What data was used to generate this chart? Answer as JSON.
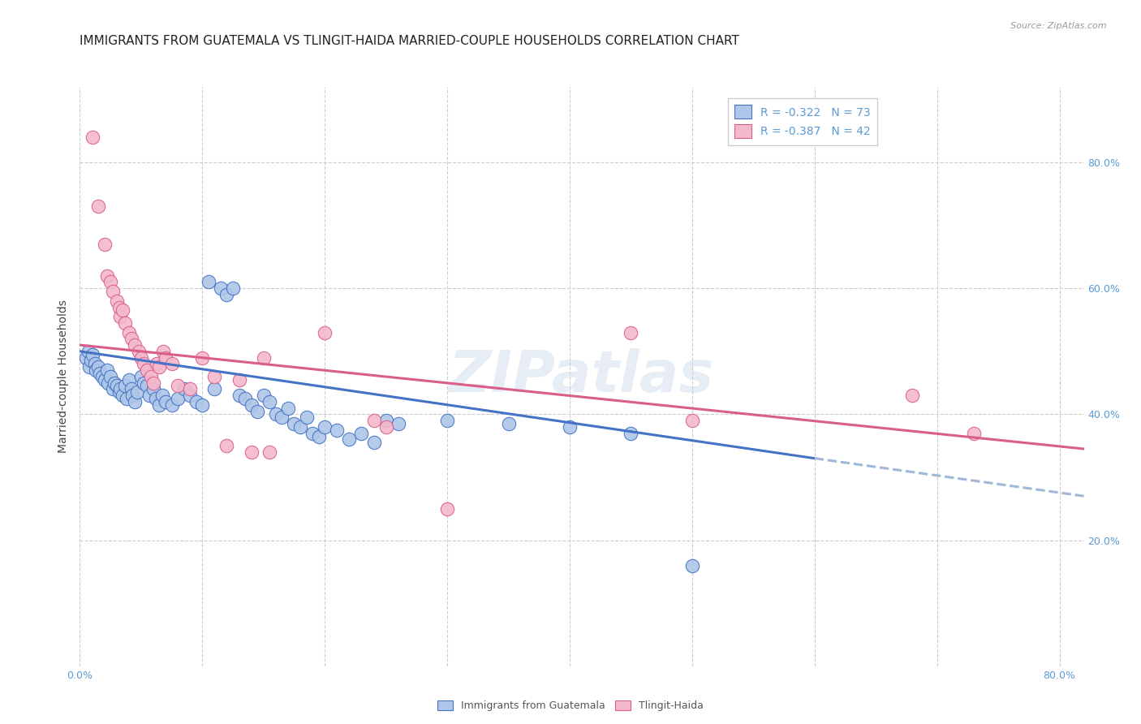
{
  "title": "IMMIGRANTS FROM GUATEMALA VS TLINGIT-HAIDA MARRIED-COUPLE HOUSEHOLDS CORRELATION CHART",
  "source": "Source: ZipAtlas.com",
  "ylabel": "Married-couple Households",
  "legend_label1": "Immigrants from Guatemala",
  "legend_label2": "Tlingit-Haida",
  "legend_R1": "R = -0.322",
  "legend_N1": "N = 73",
  "legend_R2": "R = -0.387",
  "legend_N2": "N = 42",
  "watermark": "ZIPatlas",
  "xlim": [
    0.0,
    0.82
  ],
  "ylim": [
    0.0,
    0.92
  ],
  "yticks": [
    0.2,
    0.4,
    0.6,
    0.8
  ],
  "ytick_labels": [
    "20.0%",
    "40.0%",
    "60.0%",
    "80.0%"
  ],
  "xticks": [
    0.0,
    0.1,
    0.2,
    0.3,
    0.4,
    0.5,
    0.6,
    0.7,
    0.8
  ],
  "xtick_labels": [
    "0.0%",
    "",
    "",
    "",
    "",
    "",
    "",
    "",
    "80.0%"
  ],
  "color_blue": "#aec6e8",
  "color_pink": "#f4b8cb",
  "line_color_blue": "#4472c4",
  "line_color_pink": "#d95f8a",
  "line_color_blue_dashed": "#a0b8d8",
  "tick_color": "#5b9bd5",
  "grid_color": "#cccccc",
  "scatter_blue": [
    [
      0.005,
      0.49
    ],
    [
      0.007,
      0.5
    ],
    [
      0.008,
      0.475
    ],
    [
      0.009,
      0.485
    ],
    [
      0.01,
      0.495
    ],
    [
      0.012,
      0.48
    ],
    [
      0.013,
      0.47
    ],
    [
      0.015,
      0.475
    ],
    [
      0.016,
      0.465
    ],
    [
      0.018,
      0.46
    ],
    [
      0.02,
      0.455
    ],
    [
      0.022,
      0.47
    ],
    [
      0.023,
      0.45
    ],
    [
      0.025,
      0.46
    ],
    [
      0.027,
      0.44
    ],
    [
      0.028,
      0.45
    ],
    [
      0.03,
      0.445
    ],
    [
      0.032,
      0.435
    ],
    [
      0.033,
      0.44
    ],
    [
      0.035,
      0.43
    ],
    [
      0.037,
      0.445
    ],
    [
      0.038,
      0.425
    ],
    [
      0.04,
      0.455
    ],
    [
      0.042,
      0.44
    ],
    [
      0.043,
      0.43
    ],
    [
      0.045,
      0.42
    ],
    [
      0.047,
      0.435
    ],
    [
      0.05,
      0.46
    ],
    [
      0.052,
      0.45
    ],
    [
      0.055,
      0.445
    ],
    [
      0.057,
      0.43
    ],
    [
      0.06,
      0.44
    ],
    [
      0.062,
      0.425
    ],
    [
      0.065,
      0.415
    ],
    [
      0.067,
      0.43
    ],
    [
      0.07,
      0.42
    ],
    [
      0.075,
      0.415
    ],
    [
      0.08,
      0.425
    ],
    [
      0.085,
      0.44
    ],
    [
      0.09,
      0.43
    ],
    [
      0.095,
      0.42
    ],
    [
      0.1,
      0.415
    ],
    [
      0.105,
      0.61
    ],
    [
      0.11,
      0.44
    ],
    [
      0.115,
      0.6
    ],
    [
      0.12,
      0.59
    ],
    [
      0.125,
      0.6
    ],
    [
      0.13,
      0.43
    ],
    [
      0.135,
      0.425
    ],
    [
      0.14,
      0.415
    ],
    [
      0.145,
      0.405
    ],
    [
      0.15,
      0.43
    ],
    [
      0.155,
      0.42
    ],
    [
      0.16,
      0.4
    ],
    [
      0.165,
      0.395
    ],
    [
      0.17,
      0.41
    ],
    [
      0.175,
      0.385
    ],
    [
      0.18,
      0.38
    ],
    [
      0.185,
      0.395
    ],
    [
      0.19,
      0.37
    ],
    [
      0.195,
      0.365
    ],
    [
      0.2,
      0.38
    ],
    [
      0.21,
      0.375
    ],
    [
      0.22,
      0.36
    ],
    [
      0.23,
      0.37
    ],
    [
      0.24,
      0.355
    ],
    [
      0.25,
      0.39
    ],
    [
      0.26,
      0.385
    ],
    [
      0.3,
      0.39
    ],
    [
      0.35,
      0.385
    ],
    [
      0.4,
      0.38
    ],
    [
      0.45,
      0.37
    ],
    [
      0.5,
      0.16
    ]
  ],
  "scatter_pink": [
    [
      0.01,
      0.84
    ],
    [
      0.015,
      0.73
    ],
    [
      0.02,
      0.67
    ],
    [
      0.022,
      0.62
    ],
    [
      0.025,
      0.61
    ],
    [
      0.027,
      0.595
    ],
    [
      0.03,
      0.58
    ],
    [
      0.032,
      0.57
    ],
    [
      0.033,
      0.555
    ],
    [
      0.035,
      0.565
    ],
    [
      0.037,
      0.545
    ],
    [
      0.04,
      0.53
    ],
    [
      0.042,
      0.52
    ],
    [
      0.045,
      0.51
    ],
    [
      0.048,
      0.5
    ],
    [
      0.05,
      0.49
    ],
    [
      0.052,
      0.48
    ],
    [
      0.055,
      0.47
    ],
    [
      0.058,
      0.46
    ],
    [
      0.06,
      0.45
    ],
    [
      0.063,
      0.48
    ],
    [
      0.065,
      0.475
    ],
    [
      0.068,
      0.5
    ],
    [
      0.07,
      0.49
    ],
    [
      0.075,
      0.48
    ],
    [
      0.08,
      0.445
    ],
    [
      0.09,
      0.44
    ],
    [
      0.1,
      0.49
    ],
    [
      0.11,
      0.46
    ],
    [
      0.12,
      0.35
    ],
    [
      0.13,
      0.455
    ],
    [
      0.14,
      0.34
    ],
    [
      0.15,
      0.49
    ],
    [
      0.155,
      0.34
    ],
    [
      0.2,
      0.53
    ],
    [
      0.24,
      0.39
    ],
    [
      0.25,
      0.38
    ],
    [
      0.3,
      0.25
    ],
    [
      0.45,
      0.53
    ],
    [
      0.5,
      0.39
    ],
    [
      0.68,
      0.43
    ],
    [
      0.73,
      0.37
    ]
  ],
  "trendline_blue_solid": [
    [
      0.0,
      0.5
    ],
    [
      0.6,
      0.33
    ]
  ],
  "trendline_blue_dashed": [
    [
      0.6,
      0.33
    ],
    [
      0.82,
      0.27
    ]
  ],
  "trendline_pink": [
    [
      0.0,
      0.51
    ],
    [
      0.82,
      0.345
    ]
  ],
  "background_color": "#ffffff",
  "title_fontsize": 11,
  "axis_fontsize": 9
}
